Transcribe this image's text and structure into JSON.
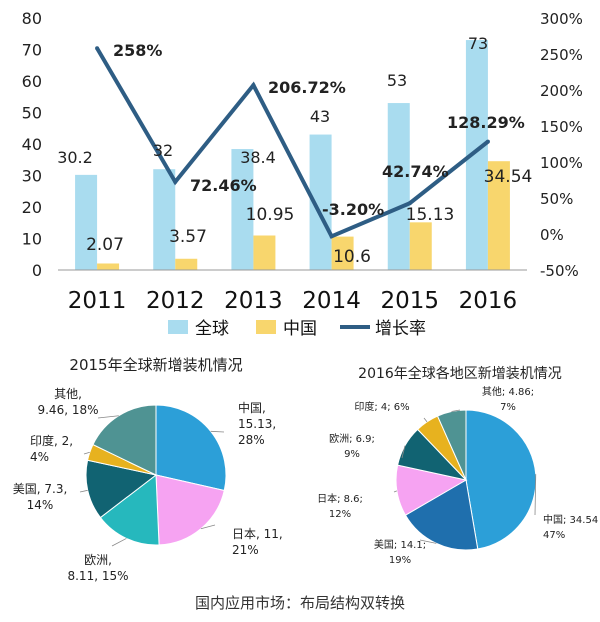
{
  "chart_data": [
    {
      "type": "bar",
      "categories": [
        "2011",
        "2012",
        "2013",
        "2014",
        "2015",
        "2016"
      ],
      "series": [
        {
          "name": "全球",
          "kind": "bar",
          "axis": "left",
          "color": "#a9dcef",
          "values": [
            30.2,
            32,
            38.4,
            43,
            53,
            73
          ],
          "labels": [
            "30.2",
            "32",
            "38.4",
            "43",
            "53",
            "73"
          ]
        },
        {
          "name": "中国",
          "kind": "bar",
          "axis": "left",
          "color": "#f8d66d",
          "values": [
            2.07,
            3.57,
            10.95,
            10.6,
            15.13,
            34.54
          ],
          "labels": [
            "2.07",
            "3.57",
            "10.95",
            "10.6",
            "15.13",
            "34.54"
          ]
        },
        {
          "name": "增长率",
          "kind": "line",
          "axis": "right",
          "color": "#2e5d84",
          "values": [
            258,
            72.46,
            206.72,
            -3.2,
            42.74,
            128.29
          ],
          "labels": [
            "258%",
            "72.46%",
            "206.72%",
            "-3.20%",
            "42.74%",
            "128.29%"
          ]
        }
      ],
      "ylim": [
        0,
        80
      ],
      "yticks": [
        "0",
        "10",
        "20",
        "30",
        "40",
        "50",
        "60",
        "70",
        "80"
      ],
      "y2lim": [
        -50,
        300
      ],
      "y2ticks": [
        "-50%",
        "0%",
        "50%",
        "100%",
        "150%",
        "200%",
        "250%",
        "300%"
      ],
      "grid": false,
      "legend_position": "bottom"
    },
    {
      "type": "pie",
      "title": "2015年全球新增装机情况",
      "slices": [
        {
          "name": "中国",
          "value": 15.13,
          "percent": 28,
          "color": "#2c9fd8",
          "label_lines": [
            "中国,",
            "15.13,",
            "28%"
          ]
        },
        {
          "name": "日本",
          "value": 11,
          "percent": 21,
          "color": "#f6a3f2",
          "label_lines": [
            "日本, 11,",
            "21%"
          ]
        },
        {
          "name": "欧洲",
          "value": 8.11,
          "percent": 15,
          "color": "#26b8bd",
          "label_lines": [
            "欧洲,",
            "8.11, 15%"
          ]
        },
        {
          "name": "美国",
          "value": 7.3,
          "percent": 14,
          "color": "#116372",
          "label_lines": [
            "美国, 7.3,",
            "14%"
          ]
        },
        {
          "name": "印度",
          "value": 2,
          "percent": 4,
          "color": "#e7b21f",
          "label_lines": [
            "印度, 2,",
            "4%"
          ]
        },
        {
          "name": "其他",
          "value": 9.46,
          "percent": 18,
          "color": "#4f9393",
          "label_lines": [
            "其他,",
            "9.46, 18%"
          ]
        }
      ]
    },
    {
      "type": "pie",
      "title": "2016年全球各地区新增装机情况",
      "slices": [
        {
          "name": "中国",
          "value": 34.54,
          "percent": 47,
          "color": "#2c9fd8",
          "label_lines": [
            "中国; 34.54",
            "47%"
          ]
        },
        {
          "name": "美国",
          "value": 14.1,
          "percent": 19,
          "color": "#1f6fad",
          "label_lines": [
            "美国; 14.1;",
            "19%"
          ]
        },
        {
          "name": "日本",
          "value": 8.6,
          "percent": 12,
          "color": "#f6a3f2",
          "label_lines": [
            "日本; 8.6;",
            "12%"
          ]
        },
        {
          "name": "欧洲",
          "value": 6.9,
          "percent": 9,
          "color": "#116372",
          "label_lines": [
            "欧洲; 6.9;",
            "9%"
          ]
        },
        {
          "name": "印度",
          "value": 4,
          "percent": 6,
          "color": "#e7b21f",
          "label_lines": [
            "印度; 4; 6%"
          ]
        },
        {
          "name": "其他",
          "value": 4.86,
          "percent": 7,
          "color": "#4f9393",
          "label_lines": [
            "其他; 4.86;",
            "7%"
          ]
        }
      ]
    }
  ],
  "caption": "国内应用市场：布局结构双转换"
}
